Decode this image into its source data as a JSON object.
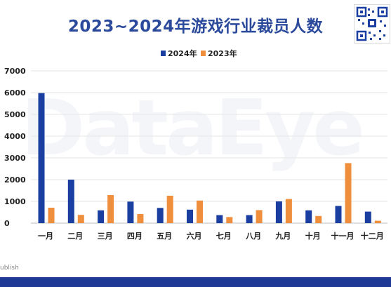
{
  "title": "2023~2024年游戏行业裁员人数",
  "footer": {
    "text": "ublish"
  },
  "watermark": "DataEye",
  "colors": {
    "s2024": "#1b3fa0",
    "s2023": "#ef8e3c",
    "title": "#2b4a9c",
    "footer_bar": "#1e3a96"
  },
  "chart_data": {
    "type": "bar",
    "title": "2023~2024年游戏行业裁员人数",
    "categories": [
      "一月",
      "二月",
      "三月",
      "四月",
      "五月",
      "六月",
      "七月",
      "八月",
      "九月",
      "十月",
      "十一月",
      "十二月"
    ],
    "series": [
      {
        "name": "2024年",
        "values": [
          5980,
          2000,
          590,
          990,
          700,
          620,
          370,
          370,
          1000,
          590,
          790,
          530
        ]
      },
      {
        "name": "2023年",
        "values": [
          710,
          380,
          1290,
          420,
          1260,
          1040,
          280,
          600,
          1110,
          330,
          2760,
          110
        ]
      }
    ],
    "ylim": [
      0,
      7000
    ],
    "yticks": [
      0,
      1000,
      2000,
      3000,
      4000,
      5000,
      6000,
      7000
    ],
    "grid": true,
    "legend": "top-center",
    "xlabel": "",
    "ylabel": ""
  }
}
